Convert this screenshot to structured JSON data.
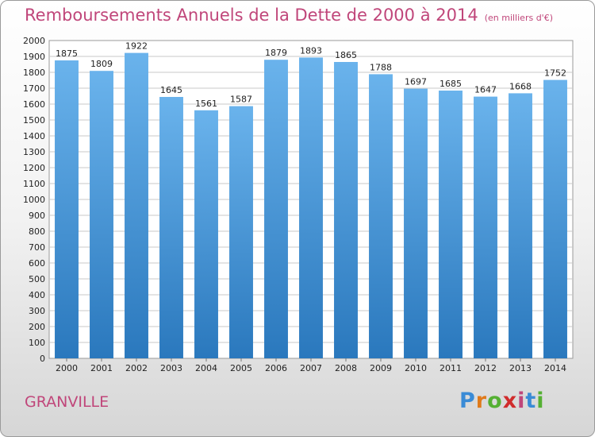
{
  "title": "Remboursements Annuels de la Dette de 2000 à 2014",
  "subtitle": "(en milliers d'€)",
  "commune": "GRANVILLE",
  "logo": {
    "letters": [
      "P",
      "r",
      "o",
      "x",
      "i",
      "t",
      "i"
    ],
    "colors": [
      "#3a8bd6",
      "#e07a1a",
      "#55b033",
      "#d02c2c",
      "#c0467a",
      "#3a8bd6",
      "#55b033"
    ]
  },
  "colors": {
    "bar_top": "#6ab3ec",
    "bar_bottom": "#2a78bd",
    "grid": "#c8c8c8",
    "title": "#c0467a"
  },
  "chart_data": {
    "type": "bar",
    "title": "Remboursements Annuels de la Dette de 2000 à 2014",
    "subtitle": "(en milliers d'€)",
    "categories": [
      "2000",
      "2001",
      "2002",
      "2003",
      "2004",
      "2005",
      "2006",
      "2007",
      "2008",
      "2009",
      "2010",
      "2011",
      "2012",
      "2013",
      "2014"
    ],
    "values": [
      1875,
      1809,
      1922,
      1645,
      1561,
      1587,
      1879,
      1893,
      1865,
      1788,
      1697,
      1685,
      1647,
      1668,
      1752
    ],
    "ylim": [
      0,
      2000
    ],
    "yticks": [
      0,
      100,
      200,
      300,
      400,
      500,
      600,
      700,
      800,
      900,
      1000,
      1100,
      1200,
      1300,
      1400,
      1500,
      1600,
      1700,
      1800,
      1900,
      2000
    ],
    "grid": true,
    "xlabel": "",
    "ylabel": ""
  }
}
